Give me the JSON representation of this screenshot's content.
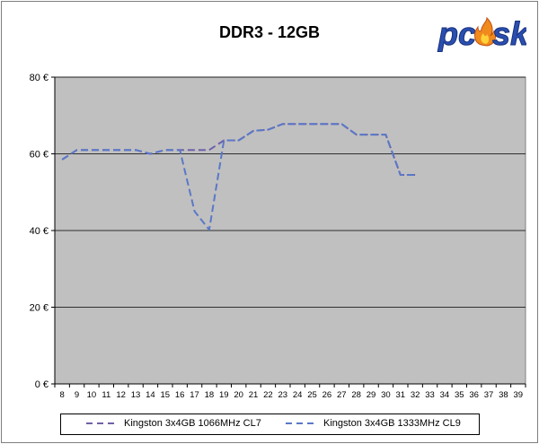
{
  "chart_data": {
    "type": "line",
    "title": "DDR3 - 12GB",
    "xlabel": "",
    "ylabel": "",
    "x": [
      8,
      9,
      10,
      11,
      12,
      13,
      14,
      15,
      16,
      17,
      18,
      19,
      20,
      21,
      22,
      23,
      24,
      25,
      26,
      27,
      28,
      29,
      30,
      31,
      32,
      33,
      34,
      35,
      36,
      37,
      38,
      39
    ],
    "ylim": [
      0,
      80
    ],
    "yticks": [
      0,
      20,
      40,
      60,
      80
    ],
    "ytick_labels": [
      "0 €",
      "20 €",
      "40 €",
      "60 €",
      "80 €"
    ],
    "grid": "horizontal",
    "legend_position": "bottom",
    "series": [
      {
        "name": "Kingston 3x4GB 1066MHz CL7",
        "color": "#7060a8",
        "x": [
          8,
          9,
          10,
          11,
          12,
          13,
          14,
          15,
          16,
          17,
          18,
          19,
          20,
          21,
          22,
          23,
          24,
          25,
          26,
          27,
          28,
          29,
          30,
          31,
          32
        ],
        "values": [
          58.5,
          61,
          61,
          61,
          61,
          61,
          60,
          61,
          61,
          61,
          61,
          63.5,
          63.5,
          66,
          66.3,
          67.8,
          67.8,
          67.8,
          67.8,
          67.8,
          65,
          65,
          65,
          54.5,
          54.5
        ]
      },
      {
        "name": "Kingston 3x4GB 1333MHz CL9",
        "color": "#5a78c8",
        "x": [
          8,
          9,
          10,
          11,
          12,
          13,
          14,
          15,
          16,
          17,
          18,
          19,
          20,
          21,
          22,
          23,
          24,
          25,
          26,
          27,
          28,
          29,
          30,
          31,
          32
        ],
        "values": [
          58.5,
          61,
          61,
          61,
          61,
          61,
          60,
          61,
          61,
          45,
          40.2,
          63.5,
          63.5,
          66,
          66.3,
          67.8,
          67.8,
          67.8,
          67.8,
          67.8,
          65,
          65,
          65,
          54.5,
          54.5
        ]
      }
    ]
  },
  "logo": {
    "text": "pcosk"
  }
}
